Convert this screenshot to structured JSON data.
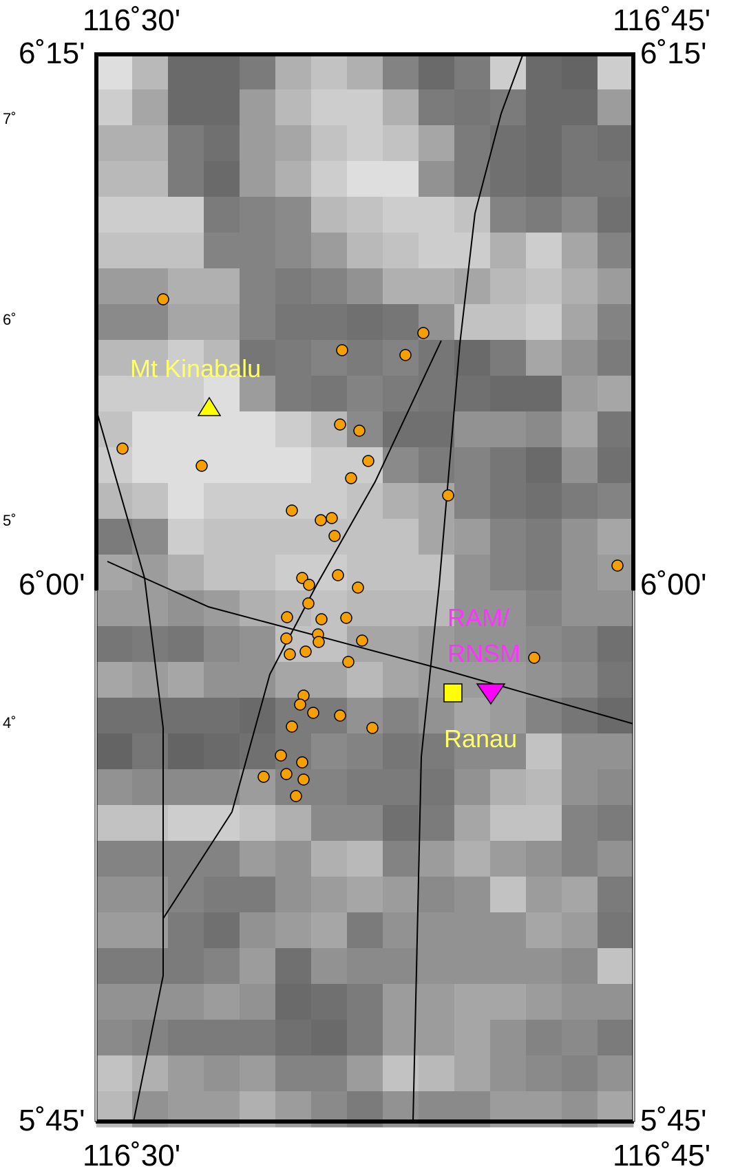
{
  "map": {
    "frame_labels": {
      "top_left_lon": "116˚30'",
      "top_right_lon": "116˚45'",
      "bottom_left_lon": "116˚30'",
      "bottom_right_lon": "116˚45'",
      "left_top_lat": "6˚15'",
      "right_top_lat": "6˚15'",
      "left_mid_lat": "6˚00'",
      "right_mid_lat": "6˚00'",
      "left_bottom_lat": "5˚45'",
      "right_bottom_lat": "5˚45'"
    },
    "side_ticks": [
      "7˚",
      "6˚",
      "5˚",
      "4˚"
    ],
    "labels": {
      "mountain": "Mt Kinabalu",
      "town": "Ranau",
      "station_line1": "RAM/",
      "station_line2": "RNSM"
    },
    "colors": {
      "event_fill": "#f5a000",
      "mountain_fill": "#ffff00",
      "town_fill": "#ffff00",
      "station_fill": "#ff00ff",
      "mountain_label": "#ffff66",
      "station_label": "#ff33ff",
      "fault_line": "#000000"
    },
    "symbols": {
      "events": "orange-circle",
      "mountain": "yellow-triangle",
      "town": "yellow-square",
      "station": "magenta-inverted-triangle"
    }
  }
}
